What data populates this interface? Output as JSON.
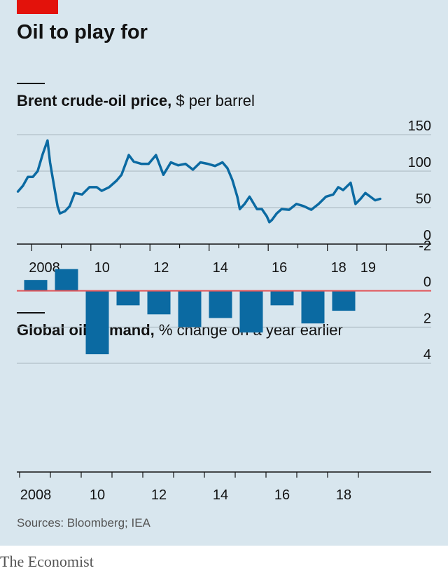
{
  "headline": "Oil to play for",
  "source": "Sources: Bloomberg; IEA",
  "brand": "The Economist",
  "colors": {
    "series": "#0b6aa2",
    "background": "#d8e6ee",
    "zero_line": "#e2565a",
    "accent": "#e3120b",
    "grid": "#a7b6be"
  },
  "chart_data": [
    {
      "type": "line",
      "title": "Brent crude-oil price,",
      "subtitle": "$ per barrel",
      "x_tick_labels": [
        "2008",
        "10",
        "12",
        "14",
        "16",
        "18",
        "19"
      ],
      "y_tick_labels": [
        "150",
        "100",
        "50",
        "0"
      ],
      "xlim": [
        "2007-07-01",
        "2019-12-31"
      ],
      "ylim": [
        0,
        150
      ],
      "grid": true,
      "series": [
        {
          "x": [
            "2007-07",
            "2007-09",
            "2007-11",
            "2008-01",
            "2008-03",
            "2008-05",
            "2008-07",
            "2008-08",
            "2008-10",
            "2008-11",
            "2008-12",
            "2009-02",
            "2009-04",
            "2009-06",
            "2009-09",
            "2009-12",
            "2010-03",
            "2010-05",
            "2010-08",
            "2010-11",
            "2011-01",
            "2011-04",
            "2011-06",
            "2011-09",
            "2011-12",
            "2012-03",
            "2012-06",
            "2012-09",
            "2012-12",
            "2013-03",
            "2013-06",
            "2013-09",
            "2013-12",
            "2014-03",
            "2014-06",
            "2014-08",
            "2014-10",
            "2014-12",
            "2015-01",
            "2015-03",
            "2015-05",
            "2015-08",
            "2015-10",
            "2015-12",
            "2016-01",
            "2016-02",
            "2016-04",
            "2016-06",
            "2016-09",
            "2016-12",
            "2017-03",
            "2017-06",
            "2017-09",
            "2017-12",
            "2018-03",
            "2018-05",
            "2018-07",
            "2018-10",
            "2018-12",
            "2019-02",
            "2019-04",
            "2019-06",
            "2019-08",
            "2019-10"
          ],
          "y": [
            72,
            80,
            92,
            92,
            100,
            123,
            142,
            112,
            72,
            52,
            42,
            45,
            52,
            70,
            68,
            78,
            78,
            73,
            78,
            87,
            95,
            122,
            113,
            110,
            110,
            122,
            95,
            112,
            108,
            110,
            102,
            112,
            110,
            107,
            112,
            104,
            88,
            65,
            48,
            55,
            65,
            48,
            48,
            38,
            30,
            33,
            42,
            48,
            47,
            55,
            52,
            47,
            55,
            65,
            68,
            78,
            74,
            84,
            55,
            62,
            70,
            65,
            60,
            62
          ]
        }
      ]
    },
    {
      "type": "bar",
      "title": "Global oil demand,",
      "subtitle": "% change on a year earlier",
      "categories": [
        "2008",
        "2009",
        "2010",
        "2011",
        "2012",
        "2013",
        "2014",
        "2015",
        "2016",
        "2017",
        "2018"
      ],
      "values": [
        -0.6,
        -1.2,
        3.5,
        0.8,
        1.3,
        2.0,
        1.5,
        2.3,
        0.8,
        1.8,
        1.1
      ],
      "x_tick_labels": [
        "2008",
        "10",
        "12",
        "14",
        "16",
        "18"
      ],
      "y_tick_labels": [
        "4",
        "2",
        "0",
        "-2"
      ],
      "ylim": [
        -2,
        4
      ],
      "grid": true
    }
  ]
}
